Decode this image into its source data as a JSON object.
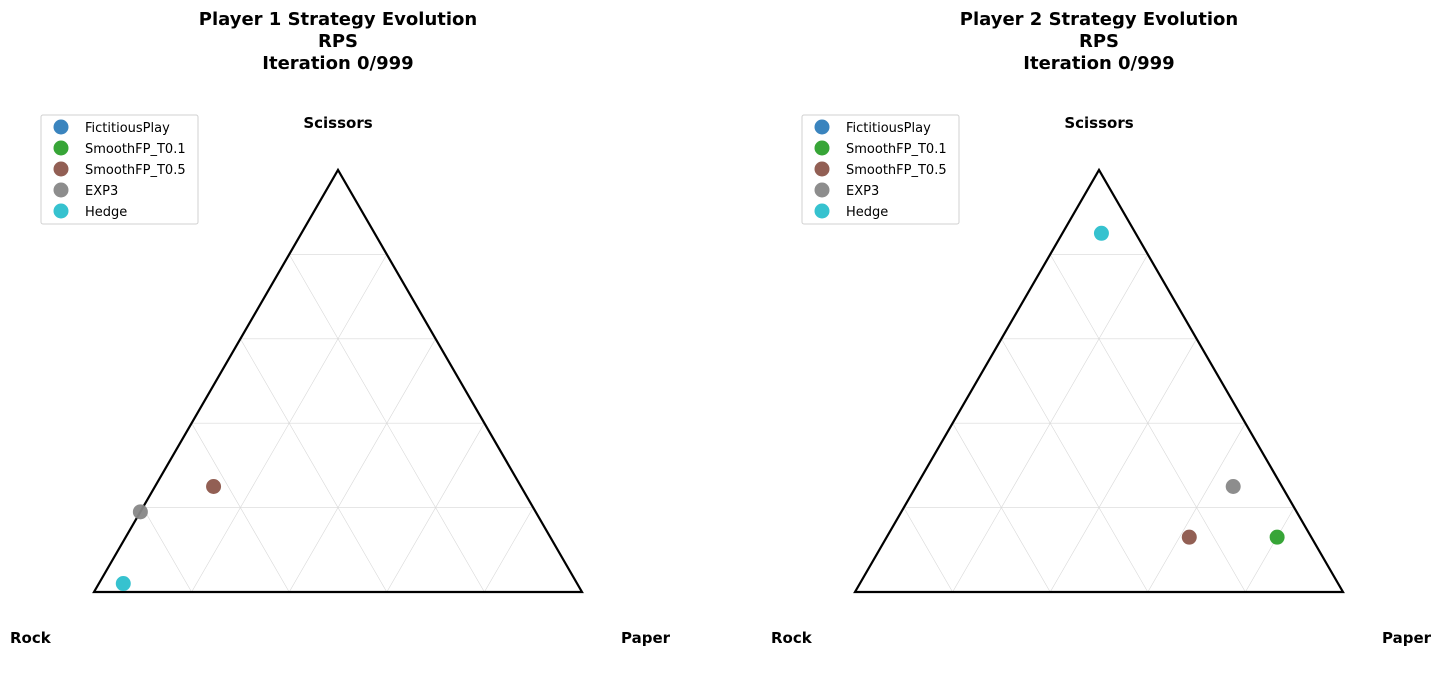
{
  "chart_data": [
    {
      "type": "scatter",
      "subtype": "ternary-simplex",
      "title_lines": [
        "Player 1 Strategy Evolution",
        "RPS",
        "Iteration 0/999"
      ],
      "vertices": {
        "top": "Scissors",
        "left": "Rock",
        "right": "Paper"
      },
      "grid": true,
      "legend_position": "top-left",
      "series": [
        {
          "name": "FictitiousPlay",
          "color": "#2f7dbb",
          "point": {
            "rock": 0.93,
            "paper": 0.0,
            "scissors": 0.02
          },
          "visible": false
        },
        {
          "name": "SmoothFP_T0.1",
          "color": "#2ca02c",
          "point": {
            "rock": 0.93,
            "paper": 0.0,
            "scissors": 0.02
          },
          "visible": false
        },
        {
          "name": "SmoothFP_T0.5",
          "color": "#8c564b",
          "point": {
            "rock": 0.63,
            "paper": 0.12,
            "scissors": 0.25
          }
        },
        {
          "name": "EXP3",
          "color": "#878787",
          "point": {
            "rock": 0.81,
            "paper": 0.0,
            "scissors": 0.19
          }
        },
        {
          "name": "Hedge",
          "color": "#2bbfcc",
          "point": {
            "rock": 0.93,
            "paper": 0.05,
            "scissors": 0.02
          }
        }
      ]
    },
    {
      "type": "scatter",
      "subtype": "ternary-simplex",
      "title_lines": [
        "Player 2 Strategy Evolution",
        "RPS",
        "Iteration 0/999"
      ],
      "vertices": {
        "top": "Scissors",
        "left": "Rock",
        "right": "Paper"
      },
      "grid": true,
      "legend_position": "top-left",
      "series": [
        {
          "name": "FictitiousPlay",
          "color": "#2f7dbb",
          "point": {
            "rock": 0.07,
            "paper": 0.8,
            "scissors": 0.13
          },
          "visible": false
        },
        {
          "name": "SmoothFP_T0.1",
          "color": "#2ca02c",
          "point": {
            "rock": 0.07,
            "paper": 0.8,
            "scissors": 0.13
          }
        },
        {
          "name": "SmoothFP_T0.5",
          "color": "#8c564b",
          "point": {
            "rock": 0.25,
            "paper": 0.62,
            "scissors": 0.13
          }
        },
        {
          "name": "EXP3",
          "color": "#878787",
          "point": {
            "rock": 0.1,
            "paper": 0.65,
            "scissors": 0.25
          }
        },
        {
          "name": "Hedge",
          "color": "#2bbfcc",
          "point": {
            "rock": 0.07,
            "paper": 0.08,
            "scissors": 0.85
          }
        }
      ]
    }
  ]
}
